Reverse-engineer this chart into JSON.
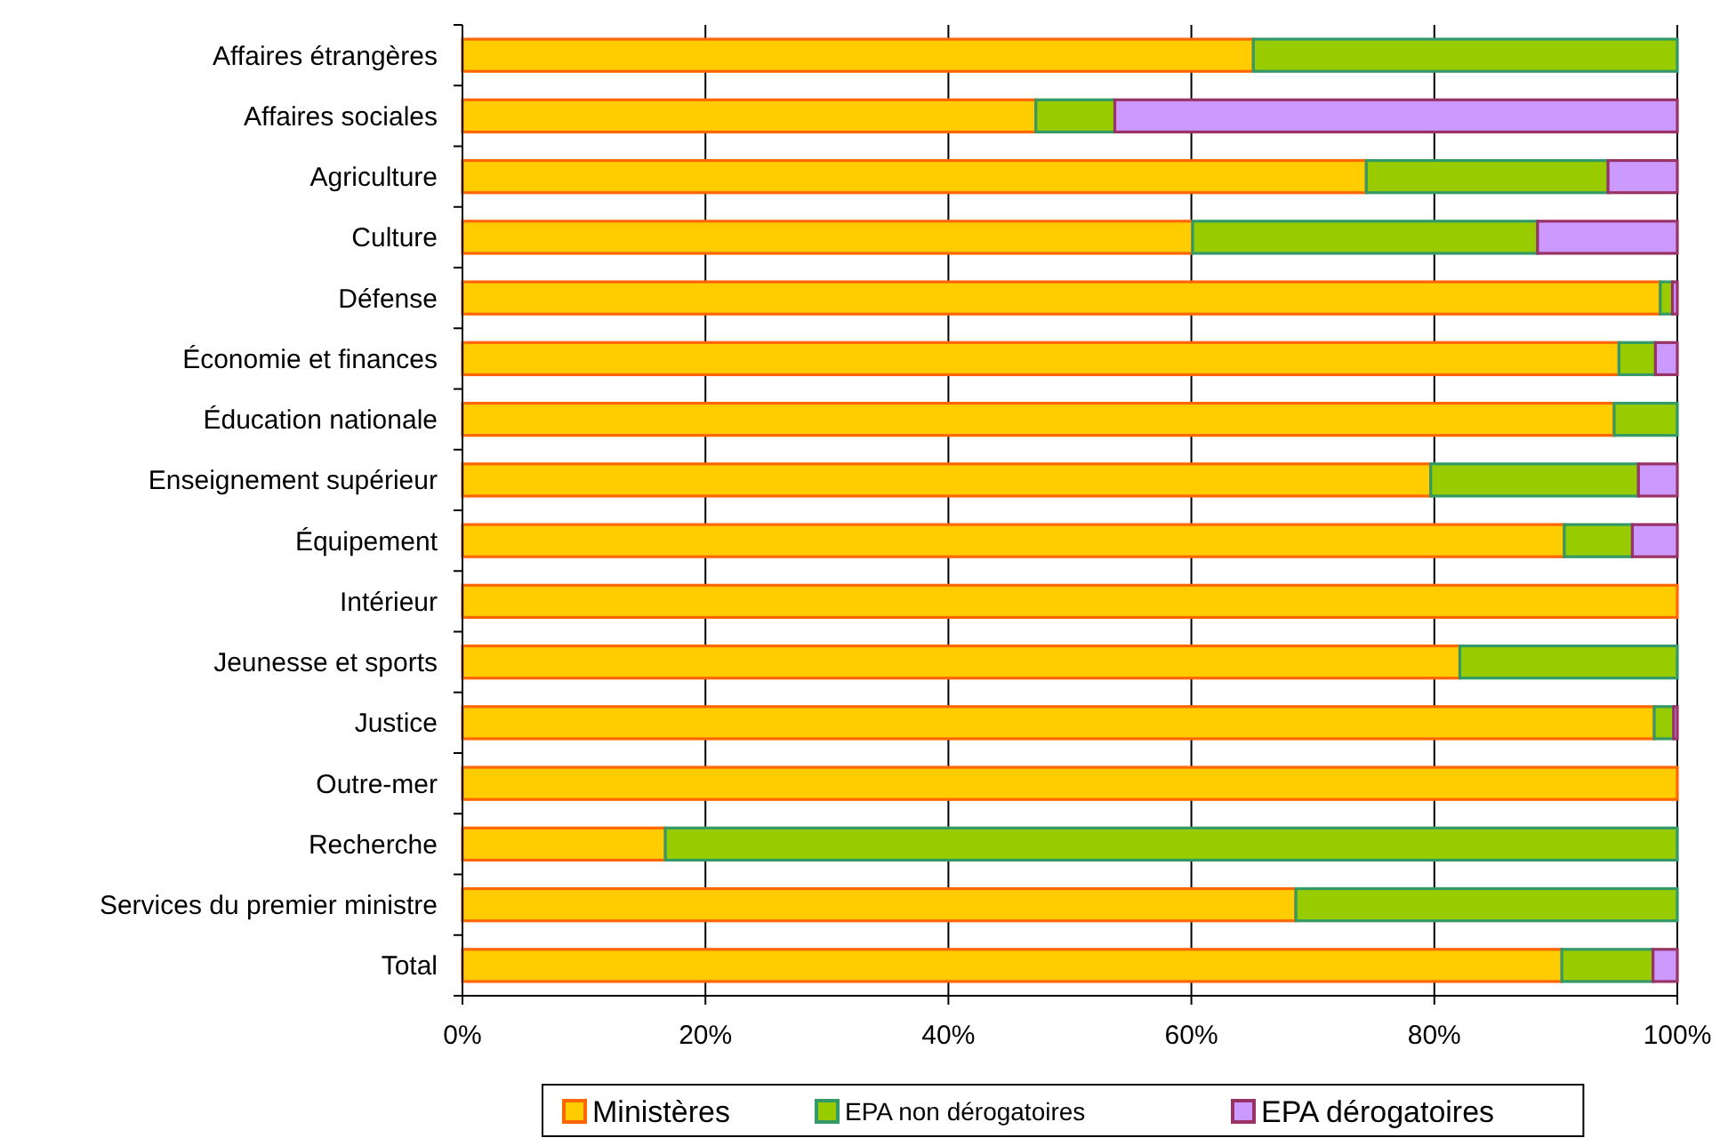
{
  "chart_data": {
    "type": "bar",
    "orientation": "horizontal",
    "stacked": true,
    "categories": [
      "Affaires étrangères",
      "Affaires sociales",
      "Agriculture",
      "Culture",
      "Défense",
      "Économie et finances",
      "Éducation nationale",
      "Enseignement supérieur",
      "Équipement",
      "Intérieur",
      "Jeunesse et sports",
      "Justice",
      "Outre-mer",
      "Recherche",
      "Services du premier ministre",
      "Total"
    ],
    "series": [
      {
        "name": "Ministères",
        "color": "#ffcc00",
        "values": [
          65.1,
          47.2,
          74.4,
          60.1,
          98.6,
          95.2,
          94.8,
          79.7,
          90.7,
          100,
          82.1,
          98.1,
          100,
          16.7,
          68.6,
          90.5
        ]
      },
      {
        "name": "EPA non dérogatoires",
        "color": "#99cc00",
        "values": [
          34.9,
          6.5,
          19.9,
          28.4,
          1.0,
          3.0,
          5.2,
          17.1,
          5.6,
          0,
          17.9,
          1.6,
          0,
          83.3,
          31.4,
          7.5
        ]
      },
      {
        "name": "EPA dérogatoires",
        "color": "#cc99ff",
        "values": [
          0,
          46.3,
          5.7,
          11.5,
          0.4,
          1.8,
          0,
          3.2,
          3.7,
          0,
          0,
          0.3,
          0,
          0,
          0,
          2.0
        ]
      }
    ],
    "xlim": [
      0,
      100
    ],
    "xticks": [
      {
        "value": 0,
        "label": "0%"
      },
      {
        "value": 20,
        "label": "20%"
      },
      {
        "value": 40,
        "label": "40%"
      },
      {
        "value": 60,
        "label": "60%"
      },
      {
        "value": 80,
        "label": "80%"
      },
      {
        "value": 100,
        "label": "100%"
      }
    ],
    "grid": "x",
    "legend": "bottom"
  }
}
